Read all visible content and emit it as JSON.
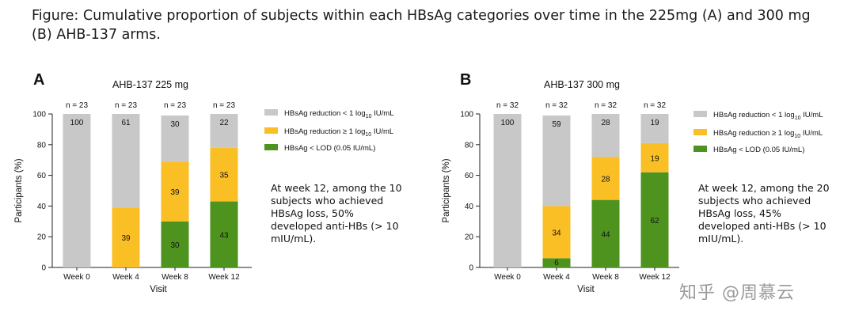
{
  "figure_title": "Figure: Cumulative proportion of subjects within each HBsAg categories over time in the 225mg (A) and 300 mg (B) AHB-137 arms.",
  "watermark": "知乎 @周慕云",
  "colors": {
    "reduction_lt1": "#c8c8c8",
    "reduction_ge1": "#fbbf26",
    "loss": "#4f931f"
  },
  "legend": [
    {
      "pre": "HBsAg reduction < 1 log",
      "sub": "10",
      "post": " IU/mL",
      "color_key": "reduction_lt1"
    },
    {
      "pre": "HBsAg reduction ≥ 1 log",
      "sub": "10",
      "post": " IU/mL",
      "color_key": "reduction_ge1"
    },
    {
      "pre": "HBsAg < LOD (0.05 IU/mL)",
      "sub": "",
      "post": "",
      "color_key": "loss"
    }
  ],
  "chart_data": [
    {
      "type": "bar",
      "stacked": true,
      "panel": "A",
      "title": "AHB-137 225 mg",
      "xlabel": "Visit",
      "ylabel": "Participants (%)",
      "ylim": [
        0,
        100
      ],
      "yticks": [
        0,
        20,
        40,
        60,
        80,
        100
      ],
      "categories": [
        "Week 0",
        "Week 4",
        "Week 8",
        "Week 12"
      ],
      "n_labels": [
        "n = 23",
        "n = 23",
        "n = 23",
        "n = 23"
      ],
      "series": [
        {
          "name": "HBsAg < LOD (0.05 IU/mL)",
          "color_key": "loss",
          "values": [
            0,
            0,
            30,
            43
          ]
        },
        {
          "name": "HBsAg reduction ≥ 1 log10 IU/mL",
          "color_key": "reduction_ge1",
          "values": [
            0,
            39,
            39,
            35
          ]
        },
        {
          "name": "HBsAg reduction < 1 log10 IU/mL",
          "color_key": "reduction_lt1",
          "values": [
            100,
            61,
            30,
            22
          ]
        }
      ],
      "legend_position": "right",
      "annotation": [
        "At week 12, among the 10",
        "subjects who achieved",
        "HBsAg loss, 50%",
        "developed anti-HBs (> 10",
        "mIU/mL)."
      ]
    },
    {
      "type": "bar",
      "stacked": true,
      "panel": "B",
      "title": "AHB-137 300 mg",
      "xlabel": "Visit",
      "ylabel": "Participants (%)",
      "ylim": [
        0,
        100
      ],
      "yticks": [
        0,
        20,
        40,
        60,
        80,
        100
      ],
      "categories": [
        "Week 0",
        "Week 4",
        "Week 8",
        "Week 12"
      ],
      "n_labels": [
        "n = 32",
        "n = 32",
        "n = 32",
        "n = 32"
      ],
      "series": [
        {
          "name": "HBsAg < LOD (0.05 IU/mL)",
          "color_key": "loss",
          "values": [
            0,
            6,
            44,
            62
          ]
        },
        {
          "name": "HBsAg reduction ≥ 1 log10 IU/mL",
          "color_key": "reduction_ge1",
          "values": [
            0,
            34,
            28,
            19
          ]
        },
        {
          "name": "HBsAg reduction < 1 log10 IU/mL",
          "color_key": "reduction_lt1",
          "values": [
            100,
            59,
            28,
            19
          ]
        }
      ],
      "legend_position": "right",
      "annotation": [
        "At week 12, among the 20",
        "subjects who achieved",
        "HBsAg loss, 45%",
        "developed anti-HBs (> 10",
        "mIU/mL)."
      ]
    }
  ]
}
